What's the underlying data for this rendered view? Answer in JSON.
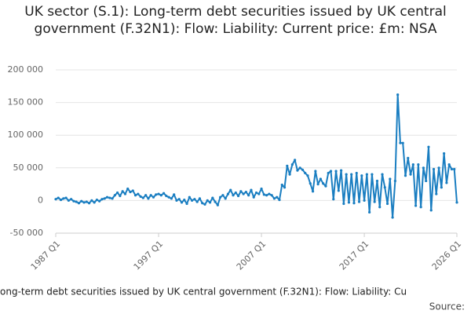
{
  "chart_data": {
    "type": "line",
    "title": "UK sector (S.1): Long-term debt securities issued by UK central government (F.32N1): Flow: Liability: Current price: £m: NSA",
    "x_label": "ong-term debt securities issued by UK central government (F.32N1): Flow: Liability: Cu",
    "source": "Source:",
    "categories": [
      "1987 Q1",
      null,
      null,
      null,
      null,
      null,
      null,
      null,
      null,
      null,
      null,
      null,
      null,
      null,
      null,
      null,
      null,
      null,
      null,
      null,
      null,
      null,
      null,
      null,
      null,
      null,
      null,
      null,
      null,
      null,
      null,
      null,
      null,
      null,
      null,
      null,
      null,
      null,
      null,
      null,
      "1997 Q1",
      null,
      null,
      null,
      null,
      null,
      null,
      null,
      null,
      null,
      null,
      null,
      null,
      null,
      null,
      null,
      null,
      null,
      null,
      null,
      null,
      null,
      null,
      null,
      null,
      null,
      null,
      null,
      null,
      null,
      null,
      null,
      null,
      null,
      null,
      null,
      null,
      null,
      null,
      null,
      "2007 Q1",
      null,
      null,
      null,
      null,
      null,
      null,
      null,
      null,
      null,
      null,
      null,
      null,
      null,
      null,
      null,
      null,
      null,
      null,
      null,
      null,
      null,
      null,
      null,
      null,
      null,
      null,
      null,
      null,
      null,
      null,
      null,
      null,
      null,
      null,
      null,
      null,
      null,
      null,
      null,
      "2017 Q1",
      null,
      null,
      null,
      null,
      null,
      null,
      null,
      null,
      null,
      null,
      null,
      null,
      null,
      null,
      null,
      null,
      null,
      null,
      null,
      null,
      null,
      null,
      null,
      null,
      null,
      null,
      null,
      null,
      null,
      null,
      null,
      null,
      null,
      null,
      null,
      "2026 Q1"
    ],
    "values": [
      2000,
      4000,
      1000,
      3000,
      4000,
      0,
      2000,
      -1000,
      -2000,
      -4000,
      -1000,
      -3000,
      -2000,
      -4000,
      0,
      -3000,
      1000,
      -1000,
      2000,
      3000,
      5000,
      4000,
      3000,
      8000,
      12000,
      7000,
      14000,
      10000,
      18000,
      13000,
      15000,
      8000,
      10000,
      6000,
      4000,
      8000,
      3000,
      8000,
      5000,
      9000,
      10000,
      8000,
      11000,
      7000,
      5000,
      3000,
      9000,
      0,
      2000,
      -3000,
      1000,
      -5000,
      5000,
      0,
      2000,
      -2000,
      3000,
      -4000,
      -6000,
      0,
      -3000,
      4000,
      -2000,
      -7000,
      5000,
      8000,
      3000,
      10000,
      16000,
      8000,
      12000,
      7000,
      14000,
      10000,
      13000,
      8000,
      16000,
      5000,
      12000,
      10000,
      18000,
      9000,
      8000,
      10000,
      8000,
      3000,
      5000,
      1000,
      24000,
      20000,
      53000,
      40000,
      55000,
      62000,
      46000,
      50000,
      47000,
      42000,
      38000,
      26000,
      14000,
      45000,
      25000,
      33000,
      26000,
      22000,
      42000,
      45000,
      2000,
      45000,
      15000,
      46000,
      -5000,
      40000,
      -3000,
      40000,
      -4000,
      42000,
      -2000,
      38000,
      0,
      40000,
      -18000,
      40000,
      -2000,
      30000,
      -10000,
      40000,
      20000,
      -5000,
      33000,
      -26000,
      30000,
      162000,
      88000,
      88000,
      38000,
      65000,
      40000,
      55000,
      -8000,
      55000,
      -10000,
      50000,
      30000,
      82000,
      -15000,
      48000,
      10000,
      50000,
      20000,
      72000,
      27000,
      55000,
      48000,
      48000,
      -3000
    ],
    "color": "#1a7ec1",
    "ylim": [
      -50000,
      200000
    ],
    "yticks": [
      {
        "value": -50000,
        "label": "-50 000"
      },
      0,
      {
        "value": 50000,
        "label": "50 000"
      },
      {
        "value": 100000,
        "label": "100 000"
      },
      {
        "value": 150000,
        "label": "150 000"
      },
      {
        "value": 200000,
        "label": "200 000"
      }
    ],
    "grid": true
  }
}
